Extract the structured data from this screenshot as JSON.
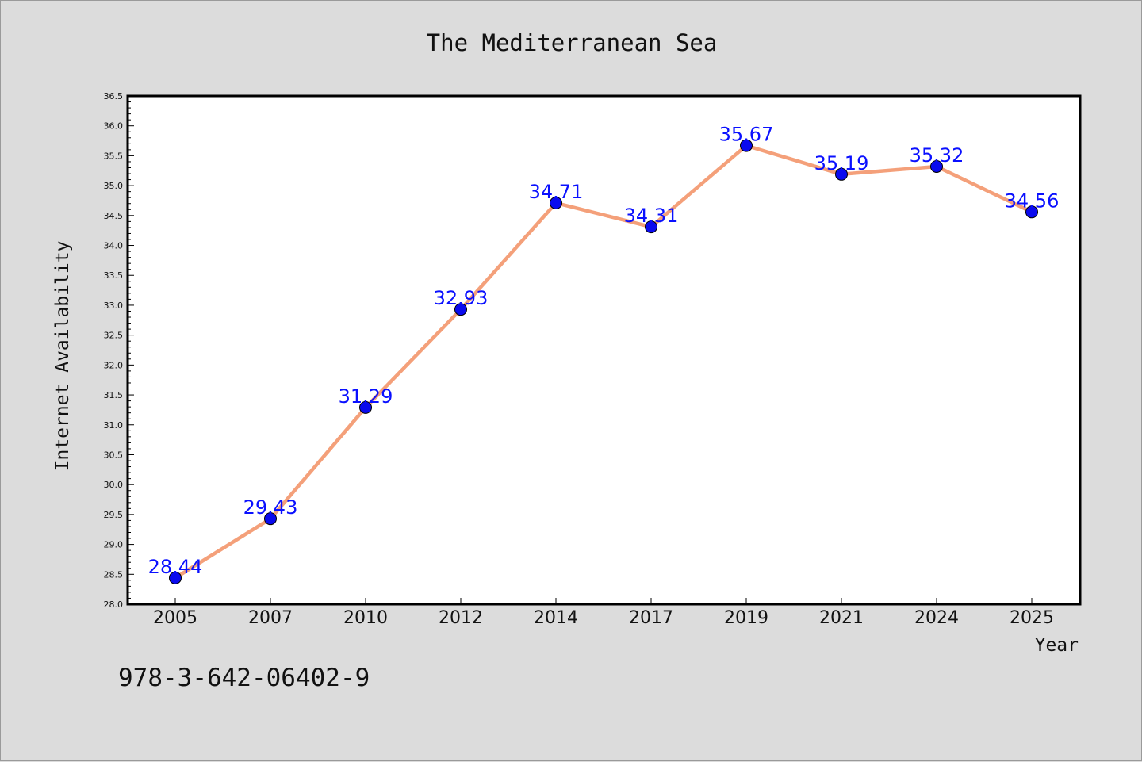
{
  "chart_data": {
    "type": "line",
    "title": "The Mediterranean Sea",
    "xlabel": "Year",
    "ylabel": "Internet Availability",
    "categories": [
      "2005",
      "2007",
      "2010",
      "2012",
      "2014",
      "2017",
      "2019",
      "2021",
      "2024",
      "2025"
    ],
    "values": [
      28.44,
      29.43,
      31.29,
      32.93,
      34.71,
      34.31,
      35.67,
      35.19,
      35.32,
      34.56
    ],
    "data_labels": [
      "28.44",
      "29.43",
      "31.29",
      "32.93",
      "34.71",
      "34.31",
      "35.67",
      "35.19",
      "35.32",
      "34.56"
    ],
    "ylim": [
      28.0,
      36.5
    ],
    "yticks": [
      "28.0",
      "28.5",
      "29.0",
      "29.5",
      "30.0",
      "30.5",
      "31.0",
      "31.5",
      "32.0",
      "32.5",
      "33.0",
      "33.5",
      "34.0",
      "34.5",
      "35.0",
      "35.5",
      "36.0",
      "36.5"
    ],
    "grid": false,
    "line_color": "#f4a07a",
    "marker_color": "#0a0aee",
    "label_color": "#0a10ff"
  },
  "footer": {
    "isbn": "978-3-642-06402-9"
  }
}
